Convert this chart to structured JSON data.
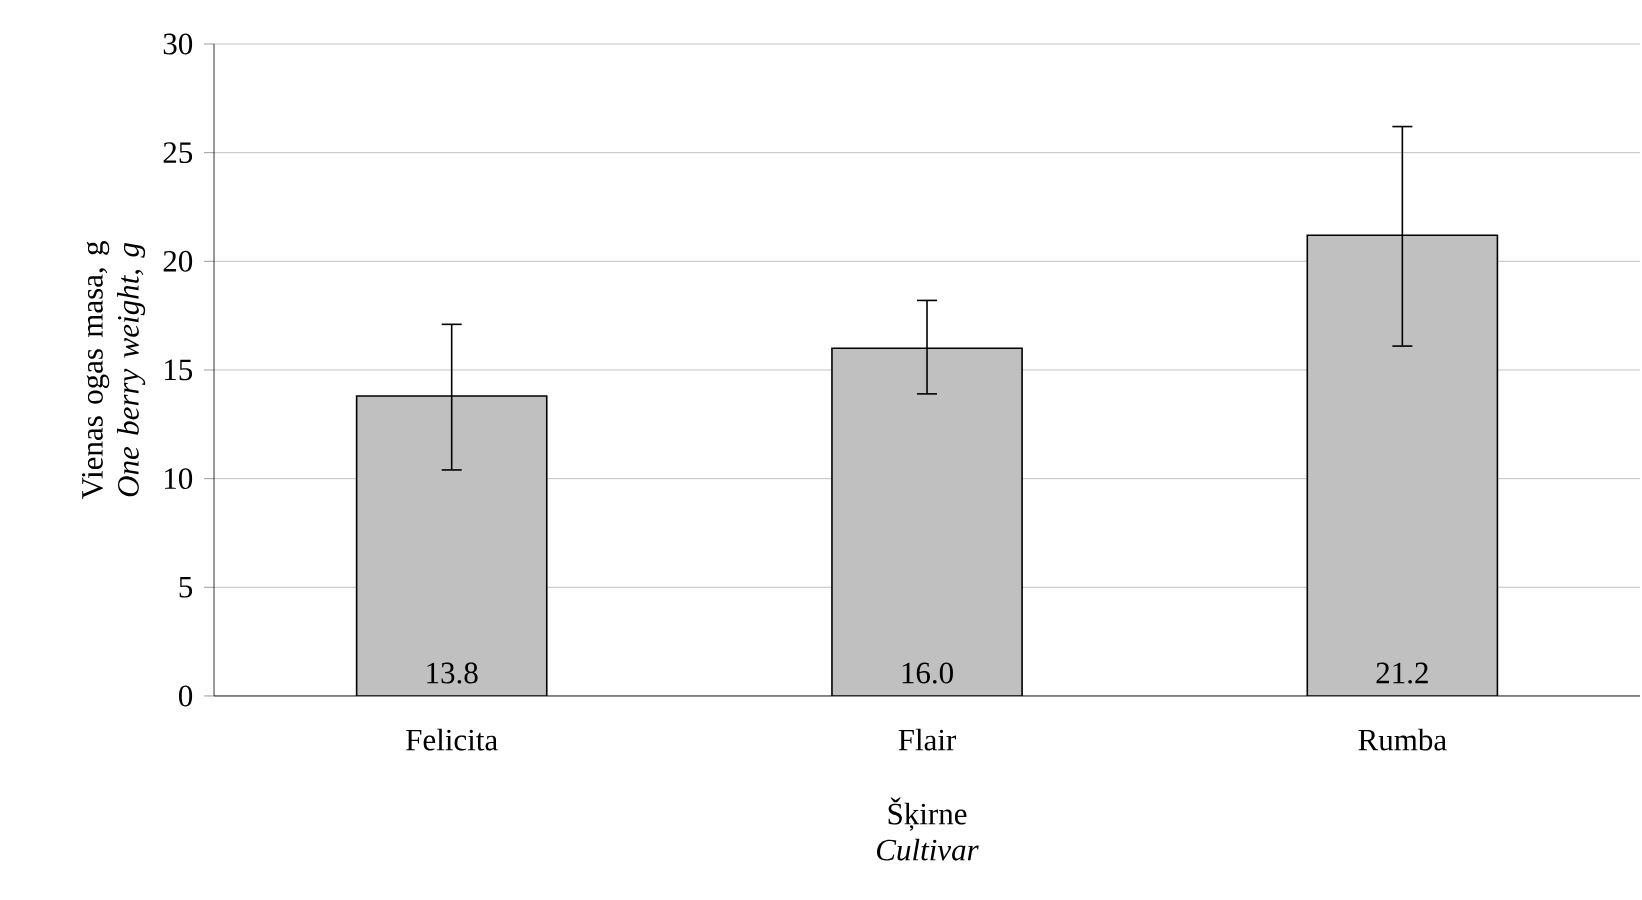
{
  "chart_data": {
    "type": "bar",
    "xlabel": "Šķirne *Cultivar*",
    "ylabel": "Vienas ogas masa, g *One berry weight, g*",
    "categories": [
      "Felicita",
      "Flair",
      "Rumba"
    ],
    "values": [
      13.8,
      16.0,
      21.2
    ],
    "value_labels": [
      "13.8",
      "16.0",
      "21.2"
    ],
    "errors": [
      [
        10.4,
        17.1
      ],
      [
        13.9,
        18.2
      ],
      [
        16.1,
        26.2
      ]
    ],
    "color": "#c0c0c0",
    "ylim": [
      0,
      30
    ],
    "yticks": [
      0,
      5,
      10,
      15,
      20,
      25,
      30
    ],
    "grid": "y"
  }
}
